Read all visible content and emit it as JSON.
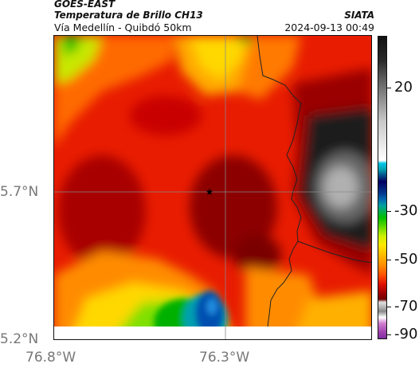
{
  "header": {
    "satellite": "GOES-EAST",
    "product": "Temperatura de Brillo CH13",
    "route": "Vía Medellín - Quibdó 50km",
    "org": "SIATA",
    "timestamp": "2024-09-13 00:49"
  },
  "map": {
    "lat_ticks": [
      "5.7°N",
      "5.2°N"
    ],
    "lon_ticks": [
      "76.8°W",
      "76.3°W"
    ],
    "lat_values": [
      5.7,
      5.2
    ],
    "lon_values": [
      -76.8,
      -76.3
    ],
    "marker": "star-marker",
    "gridline_color": "#888888",
    "border_color": "#222222"
  },
  "colorbar": {
    "tick_labels": [
      "20",
      "-30",
      "-50",
      "-70",
      "-90"
    ],
    "tick_values": [
      20,
      -30,
      -50,
      -70,
      -90
    ],
    "range": [
      -95,
      40
    ],
    "colors": [
      "#a045b8",
      "#ffffff",
      "#7a0000",
      "#e00000",
      "#ff7a00",
      "#ffd800",
      "#b8e800",
      "#00c000",
      "#00a0a0",
      "#0040a0",
      "#000050",
      "#00c8e8",
      "#d8d8d8",
      "#1a1a1a"
    ]
  }
}
